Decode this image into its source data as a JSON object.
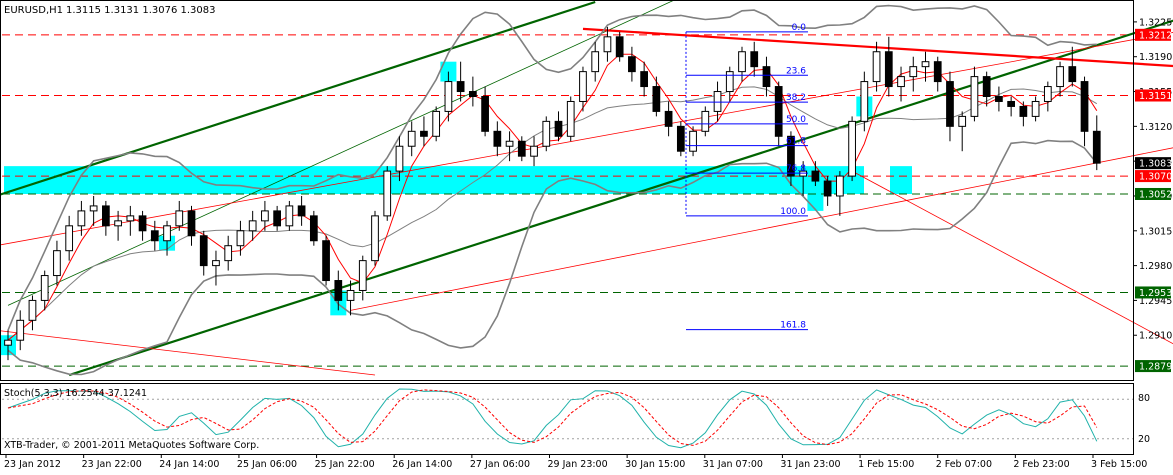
{
  "header": {
    "title": "EURUSD,H1",
    "ohlc": "1.3115 1.3131 1.3076 1.3083"
  },
  "indicator": {
    "label": "Stoch(5,3,3) 16.2544 37.1241",
    "levels": [
      "80",
      "20"
    ]
  },
  "copyright": "XTB-Trader, © 2001-2011 MetaQuotes Software Corp.",
  "colors": {
    "background": "#ffffff",
    "candle": "#000000",
    "bollinger": "#808080",
    "moving_average": "#ff0000",
    "trend_green": "#006400",
    "trend_red": "#ff0000",
    "zone_cyan": "#00ffff",
    "fib": "#0000ff",
    "stoch_main": "#20b2aa",
    "stoch_signal": "#ff0000",
    "price_red_label": "#ff0000",
    "price_green_label": "#006400",
    "price_current_label": "#000000"
  },
  "chart_data": {
    "type": "candlestick",
    "symbol": "EURUSD",
    "timeframe": "H1",
    "ylim": [
      1.2865,
      1.3245
    ],
    "y_ticks": [
      "1.3225",
      "1.3190",
      "1.3155",
      "1.3120",
      "1.3085",
      "1.3050",
      "1.3015",
      "1.2980",
      "1.2945",
      "1.2910"
    ],
    "x_ticks": [
      "23 Jan 2012",
      "23 Jan 22:00",
      "24 Jan 14:00",
      "25 Jan 06:00",
      "25 Jan 22:00",
      "26 Jan 14:00",
      "27 Jan 06:00",
      "29 Jan 23:00",
      "30 Jan 15:00",
      "31 Jan 07:00",
      "31 Jan 23:00",
      "1 Feb 15:00",
      "2 Feb 07:00",
      "2 Feb 23:00",
      "3 Feb 15:00"
    ],
    "candles": [
      [
        1.29,
        1.2915,
        1.2885,
        1.2905
      ],
      [
        1.2905,
        1.2935,
        1.2895,
        1.2925
      ],
      [
        1.2925,
        1.295,
        1.2915,
        1.2945
      ],
      [
        1.2945,
        1.2975,
        1.2935,
        1.297
      ],
      [
        1.297,
        1.3005,
        1.296,
        1.2995
      ],
      [
        1.2995,
        1.303,
        1.2985,
        1.302
      ],
      [
        1.302,
        1.3045,
        1.301,
        1.3035
      ],
      [
        1.3035,
        1.305,
        1.302,
        1.304
      ],
      [
        1.304,
        1.3045,
        1.301,
        1.302
      ],
      [
        1.302,
        1.3035,
        1.3005,
        1.3025
      ],
      [
        1.3025,
        1.304,
        1.301,
        1.303
      ],
      [
        1.303,
        1.3035,
        1.3005,
        1.3015
      ],
      [
        1.3015,
        1.3025,
        1.2995,
        1.3005
      ],
      [
        1.3005,
        1.3025,
        1.299,
        1.302
      ],
      [
        1.302,
        1.3045,
        1.3015,
        1.3035
      ],
      [
        1.3035,
        1.304,
        1.3,
        1.301
      ],
      [
        1.301,
        1.3015,
        1.297,
        1.298
      ],
      [
        1.298,
        1.2995,
        1.296,
        1.2985
      ],
      [
        1.2985,
        1.301,
        1.2975,
        1.3
      ],
      [
        1.3,
        1.3025,
        1.299,
        1.3015
      ],
      [
        1.3015,
        1.3035,
        1.3005,
        1.3025
      ],
      [
        1.3025,
        1.3045,
        1.3015,
        1.3035
      ],
      [
        1.3035,
        1.304,
        1.3015,
        1.302
      ],
      [
        1.302,
        1.3045,
        1.3015,
        1.304
      ],
      [
        1.304,
        1.305,
        1.302,
        1.303
      ],
      [
        1.303,
        1.3035,
        1.3,
        1.3005
      ],
      [
        1.3005,
        1.301,
        1.296,
        1.2965
      ],
      [
        1.2965,
        1.2975,
        1.2935,
        1.2945
      ],
      [
        1.2945,
        1.2965,
        1.293,
        1.2955
      ],
      [
        1.2955,
        1.299,
        1.2945,
        1.2985
      ],
      [
        1.2985,
        1.3035,
        1.298,
        1.303
      ],
      [
        1.303,
        1.308,
        1.3025,
        1.3075
      ],
      [
        1.3075,
        1.311,
        1.3065,
        1.31
      ],
      [
        1.31,
        1.3125,
        1.309,
        1.3115
      ],
      [
        1.3115,
        1.313,
        1.31,
        1.311
      ],
      [
        1.311,
        1.314,
        1.3105,
        1.3135
      ],
      [
        1.3135,
        1.3175,
        1.3125,
        1.3165
      ],
      [
        1.3165,
        1.3185,
        1.3145,
        1.3155
      ],
      [
        1.3155,
        1.317,
        1.314,
        1.315
      ],
      [
        1.315,
        1.316,
        1.311,
        1.3115
      ],
      [
        1.3115,
        1.3125,
        1.309,
        1.31
      ],
      [
        1.31,
        1.3115,
        1.3085,
        1.3105
      ],
      [
        1.3105,
        1.311,
        1.3085,
        1.309
      ],
      [
        1.309,
        1.311,
        1.308,
        1.31
      ],
      [
        1.31,
        1.313,
        1.3095,
        1.3125
      ],
      [
        1.3125,
        1.3135,
        1.3105,
        1.311
      ],
      [
        1.311,
        1.315,
        1.3105,
        1.3145
      ],
      [
        1.3145,
        1.318,
        1.3135,
        1.3175
      ],
      [
        1.3175,
        1.3205,
        1.3165,
        1.3195
      ],
      [
        1.3195,
        1.322,
        1.3185,
        1.321
      ],
      [
        1.321,
        1.3215,
        1.3185,
        1.319
      ],
      [
        1.319,
        1.32,
        1.3165,
        1.3175
      ],
      [
        1.3175,
        1.3185,
        1.315,
        1.316
      ],
      [
        1.316,
        1.317,
        1.313,
        1.3135
      ],
      [
        1.3135,
        1.3145,
        1.311,
        1.312
      ],
      [
        1.312,
        1.3125,
        1.309,
        1.3095
      ],
      [
        1.3095,
        1.312,
        1.309,
        1.3115
      ],
      [
        1.3115,
        1.314,
        1.311,
        1.3135
      ],
      [
        1.3135,
        1.3165,
        1.3125,
        1.3155
      ],
      [
        1.3155,
        1.318,
        1.3145,
        1.3175
      ],
      [
        1.3175,
        1.32,
        1.3165,
        1.3195
      ],
      [
        1.3195,
        1.3205,
        1.317,
        1.318
      ],
      [
        1.318,
        1.319,
        1.315,
        1.316
      ],
      [
        1.316,
        1.3165,
        1.31,
        1.311
      ],
      [
        1.311,
        1.3115,
        1.306,
        1.307
      ],
      [
        1.307,
        1.3085,
        1.305,
        1.3075
      ],
      [
        1.3075,
        1.3085,
        1.306,
        1.3065
      ],
      [
        1.3065,
        1.307,
        1.304,
        1.305
      ],
      [
        1.305,
        1.3075,
        1.303,
        1.307
      ],
      [
        1.307,
        1.313,
        1.3065,
        1.3125
      ],
      [
        1.3125,
        1.3175,
        1.3115,
        1.3165
      ],
      [
        1.3165,
        1.3205,
        1.3155,
        1.3195
      ],
      [
        1.3195,
        1.321,
        1.315,
        1.316
      ],
      [
        1.316,
        1.318,
        1.3145,
        1.317
      ],
      [
        1.317,
        1.319,
        1.3155,
        1.318
      ],
      [
        1.318,
        1.3195,
        1.3165,
        1.3185
      ],
      [
        1.3185,
        1.319,
        1.3155,
        1.3165
      ],
      [
        1.3165,
        1.3175,
        1.3105,
        1.312
      ],
      [
        1.312,
        1.3135,
        1.3095,
        1.313
      ],
      [
        1.313,
        1.318,
        1.3125,
        1.317
      ],
      [
        1.317,
        1.3175,
        1.314,
        1.315
      ],
      [
        1.315,
        1.316,
        1.3135,
        1.3145
      ],
      [
        1.3145,
        1.315,
        1.313,
        1.314
      ],
      [
        1.314,
        1.3145,
        1.312,
        1.313
      ],
      [
        1.313,
        1.315,
        1.3125,
        1.3145
      ],
      [
        1.3145,
        1.3165,
        1.3135,
        1.316
      ],
      [
        1.316,
        1.3185,
        1.315,
        1.318
      ],
      [
        1.318,
        1.32,
        1.316,
        1.3165
      ],
      [
        1.3165,
        1.317,
        1.31,
        1.3115
      ],
      [
        1.3115,
        1.3131,
        1.3076,
        1.3083
      ]
    ],
    "horizontal_levels": [
      {
        "price": 1.3212,
        "label": "1.3212",
        "color": "#ff0000",
        "style": "dashed"
      },
      {
        "price": 1.3151,
        "label": "1.3151",
        "color": "#ff0000",
        "style": "dashed"
      },
      {
        "price": 1.3083,
        "label": "1.3083",
        "color": "#000000",
        "style": "current"
      },
      {
        "price": 1.307,
        "label": "1.3070",
        "color": "#ff0000",
        "style": "dashed"
      },
      {
        "price": 1.3052,
        "label": "1.3052",
        "color": "#006400",
        "style": "dashed"
      },
      {
        "price": 1.2953,
        "label": "1.2953",
        "color": "#006400",
        "style": "dashed"
      },
      {
        "price": 1.2879,
        "label": "1.2879",
        "color": "#006400",
        "style": "dashed"
      }
    ],
    "fibonacci": {
      "high": 1.3215,
      "low": 1.303,
      "levels": [
        {
          "ratio": 0.0,
          "label": "0.0"
        },
        {
          "ratio": 0.236,
          "label": "23.6"
        },
        {
          "ratio": 0.382,
          "label": "38.2"
        },
        {
          "ratio": 0.5,
          "label": "50.0"
        },
        {
          "ratio": 0.618,
          "label": "61.8"
        },
        {
          "ratio": 0.768,
          "label": "76.8"
        },
        {
          "ratio": 1.0,
          "label": "100.0"
        },
        {
          "ratio": 1.618,
          "label": "161.8"
        }
      ]
    },
    "stochastic": {
      "k": 16.2544,
      "d": 37.1241,
      "range": [
        0,
        100
      ],
      "levels": [
        80,
        20
      ]
    }
  }
}
